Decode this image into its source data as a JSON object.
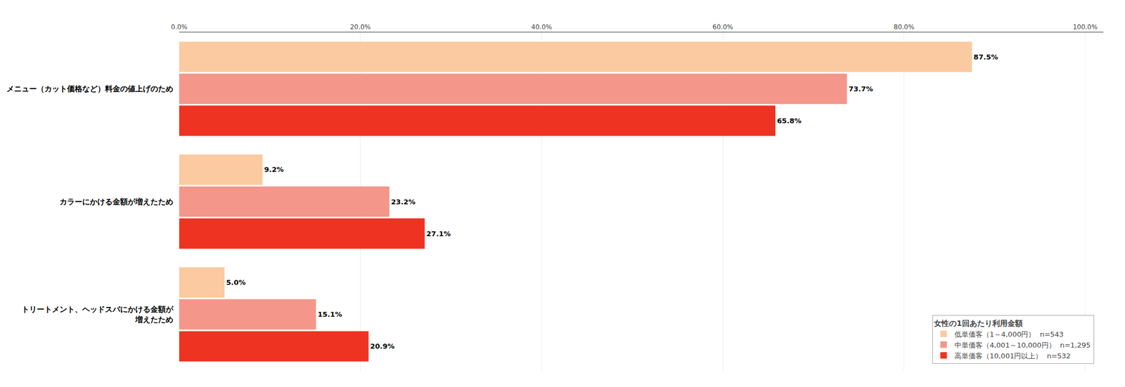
{
  "chart_data": {
    "type": "bar",
    "orientation": "horizontal",
    "categories": [
      "メニュー（カット価格など）料金の値上げのため",
      "カラーにかける金額が増えたため",
      "トリートメント、ヘッドスパにかける金額が\n増えたため"
    ],
    "series": [
      {
        "name": "低単価客（1～4,000円）  n=543",
        "color": "#FBCAA0",
        "values": [
          87.5,
          9.2,
          5.0
        ],
        "value_labels": [
          "87.5%",
          "9.2%",
          "5.0%"
        ]
      },
      {
        "name": "中単価客（4,001～10,000円）  n=1,295",
        "color": "#F4968A",
        "values": [
          73.7,
          23.2,
          15.1
        ],
        "value_labels": [
          "73.7%",
          "23.2%",
          "15.1%"
        ]
      },
      {
        "name": "高単価客（10,001円以上）  n=532",
        "color": "#EE3322",
        "values": [
          65.8,
          27.1,
          20.9
        ],
        "value_labels": [
          "65.8%",
          "27.1%",
          "20.9%"
        ]
      }
    ],
    "xlim": [
      0,
      102
    ],
    "xticks": [
      {
        "value": 0,
        "label": "0.0%"
      },
      {
        "value": 20,
        "label": "20.0%"
      },
      {
        "value": 40,
        "label": "40.0%"
      },
      {
        "value": 60,
        "label": "60.0%"
      },
      {
        "value": 80,
        "label": "80.0%"
      },
      {
        "value": 100,
        "label": "100.0%"
      }
    ],
    "grid": true,
    "data_labels": true,
    "legend": "lower right",
    "legend_title": "女性の1回あたり利用金額",
    "tick_labels": "x"
  }
}
